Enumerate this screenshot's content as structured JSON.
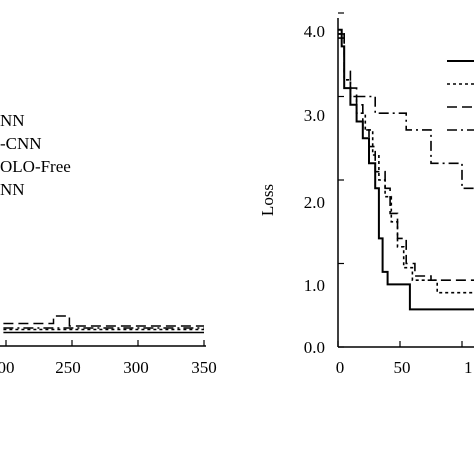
{
  "chart_data": [
    {
      "type": "line",
      "title": "",
      "xlabel": "",
      "ylabel": "",
      "x_ticks": [
        "00",
        "250",
        "300",
        "350"
      ],
      "legend_labels": [
        "NN",
        "-CNN",
        "OLO-Free",
        "NN"
      ],
      "series": [
        {
          "values": [
            [
              198,
              0.27
            ],
            [
              350,
              0.27
            ]
          ]
        },
        {
          "values": [
            [
              198,
              0.33
            ],
            [
              350,
              0.33
            ]
          ]
        },
        {
          "values": [
            [
              198,
              0.45
            ],
            [
              235,
              0.45
            ],
            [
              236,
              0.6
            ],
            [
              240,
              0.6
            ],
            [
              248,
              0.4
            ],
            [
              350,
              0.4
            ]
          ]
        },
        {
          "values": [
            [
              198,
              0.36
            ],
            [
              350,
              0.36
            ]
          ]
        }
      ]
    },
    {
      "type": "line",
      "title": "",
      "xlabel": "",
      "ylabel": "Loss",
      "xlim": [
        0,
        140
      ],
      "ylim": [
        0,
        4.2
      ],
      "x_ticks": [
        "0",
        "50",
        "1"
      ],
      "y_ticks": [
        "0.0",
        "1.0",
        "2.0",
        "3.0",
        "4.0"
      ],
      "series": [
        {
          "values": [
            [
              0,
              3.8
            ],
            [
              3,
              3.6
            ],
            [
              5,
              3.1
            ],
            [
              10,
              2.9
            ],
            [
              15,
              2.7
            ],
            [
              20,
              2.5
            ],
            [
              25,
              2.2
            ],
            [
              30,
              1.9
            ],
            [
              33,
              1.3
            ],
            [
              36,
              0.9
            ],
            [
              40,
              0.75
            ],
            [
              55,
              0.75
            ],
            [
              58,
              0.45
            ],
            [
              140,
              0.45
            ]
          ]
        },
        {
          "values": [
            [
              0,
              3.75
            ],
            [
              5,
              3.2
            ],
            [
              10,
              3.0
            ],
            [
              15,
              2.8
            ],
            [
              22,
              2.6
            ],
            [
              28,
              2.3
            ],
            [
              33,
              2.0
            ],
            [
              38,
              1.8
            ],
            [
              43,
              1.5
            ],
            [
              48,
              1.2
            ],
            [
              53,
              0.95
            ],
            [
              60,
              0.8
            ],
            [
              80,
              0.65
            ],
            [
              140,
              0.65
            ]
          ]
        },
        {
          "values": [
            [
              0,
              3.7
            ],
            [
              5,
              3.3
            ],
            [
              10,
              3.1
            ],
            [
              15,
              2.9
            ],
            [
              20,
              2.6
            ],
            [
              25,
              2.4
            ],
            [
              30,
              2.1
            ],
            [
              38,
              1.9
            ],
            [
              42,
              1.6
            ],
            [
              48,
              1.3
            ],
            [
              55,
              1.0
            ],
            [
              62,
              0.85
            ],
            [
              75,
              0.8
            ],
            [
              140,
              0.8
            ]
          ]
        },
        {
          "values": [
            [
              0,
              3.75
            ],
            [
              5,
              3.2
            ],
            [
              10,
              3.0
            ],
            [
              25,
              3.0
            ],
            [
              30,
              2.8
            ],
            [
              50,
              2.8
            ],
            [
              55,
              2.6
            ],
            [
              70,
              2.6
            ],
            [
              75,
              2.2
            ],
            [
              95,
              2.2
            ],
            [
              100,
              1.9
            ],
            [
              140,
              1.9
            ]
          ]
        }
      ]
    }
  ]
}
